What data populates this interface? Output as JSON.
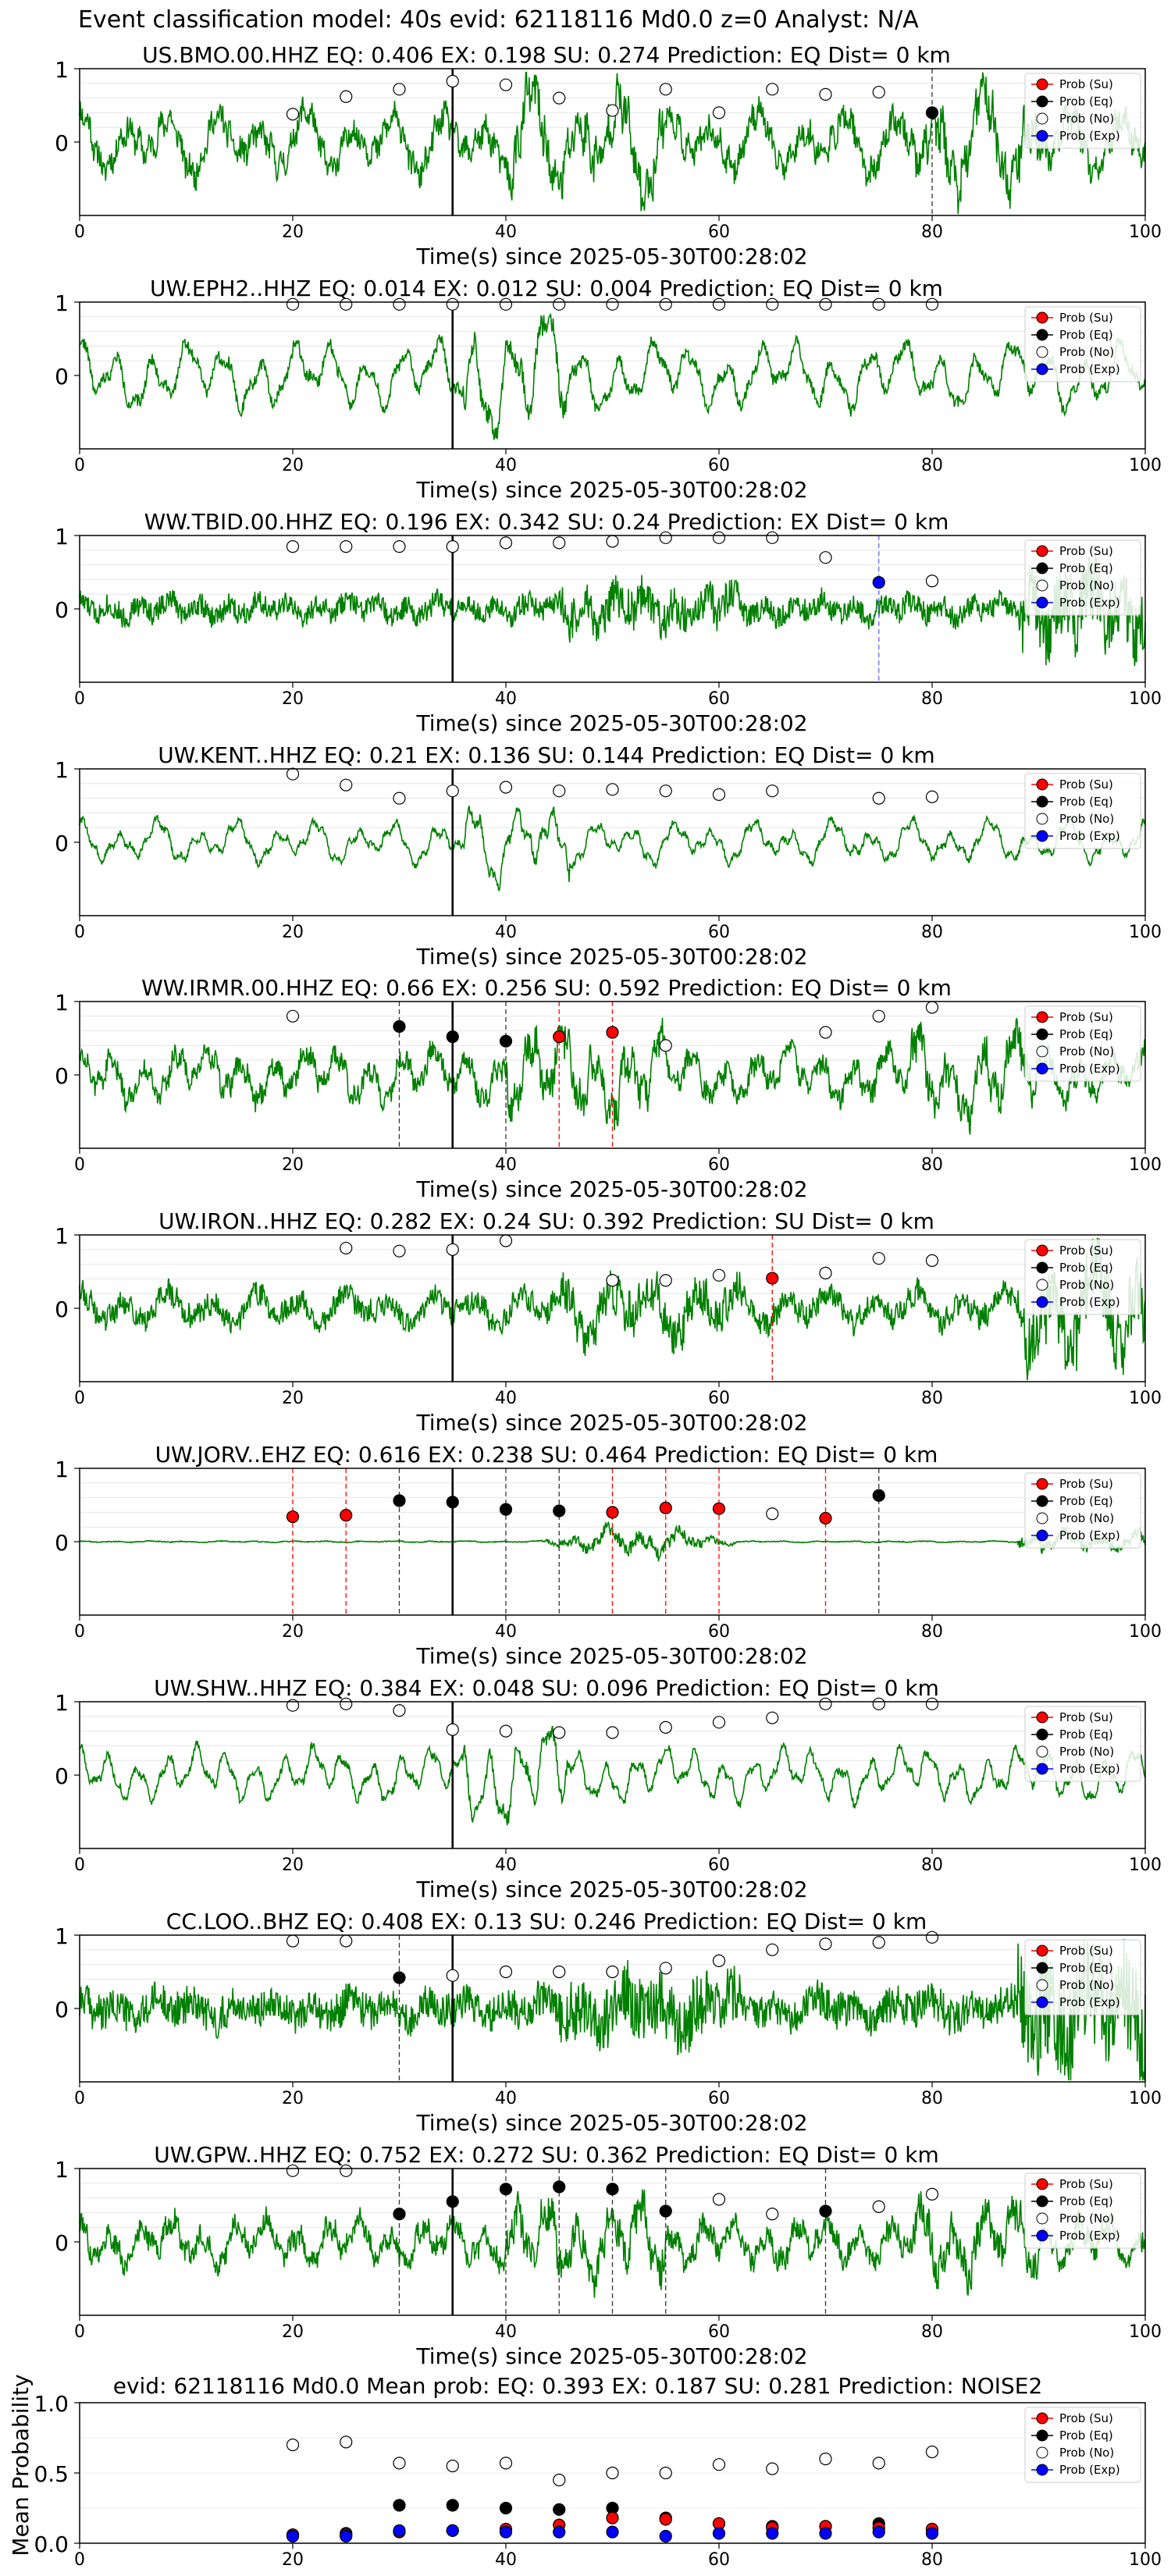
{
  "suptitle": "Event classification model: 40s evid: 62118116 Md0.0 z=0 Analyst: N/A",
  "legend_labels": [
    "Prob (Su)",
    "Prob (Eq)",
    "Prob (No)",
    "Prob (Exp)"
  ],
  "colors": {
    "waveform": "#008000",
    "su": "#ff0000",
    "eq": "#000000",
    "no": "#ffffff",
    "exp": "#0000ff",
    "exp_line": "#6666ff"
  },
  "chart_data": [
    {
      "type": "line",
      "title": "US.BMO.00.HHZ   EQ: 0.406  EX: 0.198  SU: 0.274   Prediction: EQ    Dist= 0 km",
      "xlabel": "Time(s) since 2025-05-30T00:28:02",
      "xlim": [
        0,
        100
      ],
      "ylim": [
        -1,
        1
      ],
      "xticks": [
        "0",
        "20",
        "40",
        "60",
        "80",
        "100"
      ],
      "yticks": [
        "0",
        "1"
      ],
      "arrival": 35,
      "amplitude": 0.75,
      "noise": 0.35,
      "style": "mixed",
      "seed": 11,
      "no": [
        [
          20,
          0.38
        ],
        [
          25,
          0.62
        ],
        [
          30,
          0.72
        ],
        [
          35,
          0.83
        ],
        [
          40,
          0.78
        ],
        [
          45,
          0.6
        ],
        [
          50,
          0.43
        ],
        [
          55,
          0.72
        ],
        [
          60,
          0.4
        ],
        [
          65,
          0.72
        ],
        [
          70,
          0.65
        ],
        [
          75,
          0.68
        ]
      ],
      "eq": [
        [
          80,
          0.4
        ]
      ],
      "su": [],
      "exp": [],
      "eq_lines": [
        80
      ],
      "su_lines": [],
      "exp_lines": []
    },
    {
      "type": "line",
      "title": "UW.EPH2..HHZ   EQ: 0.014  EX: 0.012  SU: 0.004   Prediction: EQ    Dist= 0 km",
      "xlabel": "Time(s) since 2025-05-30T00:28:02",
      "xlim": [
        0,
        100
      ],
      "ylim": [
        -1,
        1
      ],
      "xticks": [
        "0",
        "20",
        "40",
        "60",
        "80",
        "100"
      ],
      "yticks": [
        "0",
        "1"
      ],
      "arrival": 35,
      "amplitude": 0.7,
      "noise": 0.15,
      "style": "smooth",
      "seed": 22,
      "no": [
        [
          20,
          0.97
        ],
        [
          25,
          0.97
        ],
        [
          30,
          0.97
        ],
        [
          35,
          0.97
        ],
        [
          40,
          0.97
        ],
        [
          45,
          0.97
        ],
        [
          50,
          0.97
        ],
        [
          55,
          0.97
        ],
        [
          60,
          0.97
        ],
        [
          65,
          0.97
        ],
        [
          70,
          0.97
        ],
        [
          75,
          0.97
        ],
        [
          80,
          0.97
        ]
      ],
      "eq": [],
      "su": [],
      "exp": [],
      "eq_lines": [],
      "su_lines": [],
      "exp_lines": []
    },
    {
      "type": "line",
      "title": "WW.TBID.00.HHZ   EQ: 0.196  EX: 0.342  SU: 0.24   Prediction: EX    Dist= 0 km",
      "xlabel": "Time(s) since 2025-05-30T00:28:02",
      "xlim": [
        0,
        100
      ],
      "ylim": [
        -1,
        1
      ],
      "xticks": [
        "0",
        "20",
        "40",
        "60",
        "80",
        "100"
      ],
      "yticks": [
        "0",
        "1"
      ],
      "arrival": 35,
      "amplitude": 0.25,
      "noise": 0.35,
      "style": "noisy",
      "seed": 33,
      "no": [
        [
          20,
          0.85
        ],
        [
          25,
          0.85
        ],
        [
          30,
          0.85
        ],
        [
          35,
          0.85
        ],
        [
          40,
          0.9
        ],
        [
          45,
          0.9
        ],
        [
          50,
          0.92
        ],
        [
          55,
          0.97
        ],
        [
          60,
          0.97
        ],
        [
          65,
          0.97
        ],
        [
          70,
          0.7
        ],
        [
          80,
          0.38
        ]
      ],
      "eq": [],
      "su": [],
      "exp": [
        [
          75,
          0.36
        ]
      ],
      "eq_lines": [],
      "su_lines": [],
      "exp_lines": [
        75
      ]
    },
    {
      "type": "line",
      "title": "UW.KENT..HHZ   EQ: 0.21  EX: 0.136  SU: 0.144   Prediction: EQ    Dist= 0 km",
      "xlabel": "Time(s) since 2025-05-30T00:28:02",
      "xlim": [
        0,
        100
      ],
      "ylim": [
        -1,
        1
      ],
      "xticks": [
        "0",
        "20",
        "40",
        "60",
        "80",
        "100"
      ],
      "yticks": [
        "0",
        "1"
      ],
      "arrival": 35,
      "amplitude": 0.45,
      "noise": 0.08,
      "style": "smooth",
      "seed": 44,
      "no": [
        [
          20,
          0.93
        ],
        [
          25,
          0.78
        ],
        [
          30,
          0.6
        ],
        [
          35,
          0.7
        ],
        [
          40,
          0.75
        ],
        [
          45,
          0.7
        ],
        [
          50,
          0.72
        ],
        [
          55,
          0.7
        ],
        [
          60,
          0.65
        ],
        [
          65,
          0.7
        ],
        [
          75,
          0.6
        ],
        [
          80,
          0.62
        ]
      ],
      "eq": [],
      "su": [],
      "exp": [],
      "eq_lines": [],
      "su_lines": [],
      "exp_lines": []
    },
    {
      "type": "line",
      "title": "WW.IRMR.00.HHZ   EQ: 0.66  EX: 0.256  SU: 0.592   Prediction: EQ    Dist= 0 km",
      "xlabel": "Time(s) since 2025-05-30T00:28:02",
      "xlim": [
        0,
        100
      ],
      "ylim": [
        -1,
        1
      ],
      "xticks": [
        "0",
        "20",
        "40",
        "60",
        "80",
        "100"
      ],
      "yticks": [
        "0",
        "1"
      ],
      "arrival": 35,
      "amplitude": 0.6,
      "noise": 0.3,
      "style": "mixed",
      "seed": 55,
      "no": [
        [
          20,
          0.8
        ],
        [
          55,
          0.4
        ],
        [
          70,
          0.58
        ],
        [
          75,
          0.8
        ],
        [
          80,
          0.92
        ]
      ],
      "eq": [
        [
          30,
          0.66
        ],
        [
          35,
          0.52
        ],
        [
          40,
          0.46
        ]
      ],
      "su": [
        [
          45,
          0.52
        ],
        [
          50,
          0.58
        ]
      ],
      "exp": [],
      "eq_lines": [
        30,
        40
      ],
      "su_lines": [
        45,
        50
      ],
      "exp_lines": []
    },
    {
      "type": "line",
      "title": "UW.IRON..HHZ   EQ: 0.282  EX: 0.24  SU: 0.392   Prediction: SU    Dist= 0 km",
      "xlabel": "Time(s) since 2025-05-30T00:28:02",
      "xlim": [
        0,
        100
      ],
      "ylim": [
        -1,
        1
      ],
      "xticks": [
        "0",
        "20",
        "40",
        "60",
        "80",
        "100"
      ],
      "yticks": [
        "0",
        "1"
      ],
      "arrival": 35,
      "amplitude": 0.45,
      "noise": 0.35,
      "style": "noisy",
      "seed": 66,
      "no": [
        [
          25,
          0.82
        ],
        [
          30,
          0.78
        ],
        [
          35,
          0.8
        ],
        [
          40,
          0.92
        ],
        [
          50,
          0.38
        ],
        [
          55,
          0.38
        ],
        [
          60,
          0.45
        ],
        [
          70,
          0.48
        ],
        [
          75,
          0.68
        ],
        [
          80,
          0.65
        ]
      ],
      "eq": [],
      "su": [
        [
          65,
          0.41
        ]
      ],
      "exp": [],
      "eq_lines": [],
      "su_lines": [
        65
      ],
      "exp_lines": []
    },
    {
      "type": "line",
      "title": "UW.JORV..EHZ   EQ: 0.616  EX: 0.238  SU: 0.464   Prediction: EQ    Dist= 0 km",
      "xlabel": "Time(s) since 2025-05-30T00:28:02",
      "xlim": [
        0,
        100
      ],
      "ylim": [
        -1,
        1
      ],
      "xticks": [
        "0",
        "20",
        "40",
        "60",
        "80",
        "100"
      ],
      "yticks": [
        "0",
        "1"
      ],
      "arrival": 35,
      "amplitude": 0.06,
      "noise": 0.04,
      "style": "quiet",
      "seed": 77,
      "no": [
        [
          65,
          0.38
        ]
      ],
      "eq": [
        [
          30,
          0.56
        ],
        [
          35,
          0.54
        ],
        [
          40,
          0.44
        ],
        [
          45,
          0.42
        ],
        [
          75,
          0.63
        ]
      ],
      "su": [
        [
          20,
          0.34
        ],
        [
          25,
          0.36
        ],
        [
          50,
          0.4
        ],
        [
          55,
          0.46
        ],
        [
          60,
          0.45
        ],
        [
          70,
          0.32
        ]
      ],
      "exp": [],
      "eq_lines": [
        30,
        40,
        45,
        75
      ],
      "su_lines": [
        20,
        25,
        50,
        55,
        60,
        70
      ],
      "exp_lines": []
    },
    {
      "type": "line",
      "title": "UW.SHW..HHZ   EQ: 0.384  EX: 0.048  SU: 0.096   Prediction: EQ    Dist= 0 km",
      "xlabel": "Time(s) since 2025-05-30T00:28:02",
      "xlim": [
        0,
        100
      ],
      "ylim": [
        -1,
        1
      ],
      "xticks": [
        "0",
        "20",
        "40",
        "60",
        "80",
        "100"
      ],
      "yticks": [
        "0",
        "1"
      ],
      "arrival": 35,
      "amplitude": 0.55,
      "noise": 0.1,
      "style": "smooth",
      "seed": 88,
      "no": [
        [
          20,
          0.95
        ],
        [
          25,
          0.97
        ],
        [
          30,
          0.88
        ],
        [
          35,
          0.62
        ],
        [
          40,
          0.6
        ],
        [
          45,
          0.58
        ],
        [
          50,
          0.58
        ],
        [
          55,
          0.65
        ],
        [
          60,
          0.72
        ],
        [
          65,
          0.78
        ],
        [
          70,
          0.97
        ],
        [
          75,
          0.97
        ],
        [
          80,
          0.97
        ]
      ],
      "eq": [],
      "su": [],
      "exp": [],
      "eq_lines": [],
      "su_lines": [],
      "exp_lines": []
    },
    {
      "type": "line",
      "title": "CC.LOO..BHZ   EQ: 0.408  EX: 0.13  SU: 0.246   Prediction: EQ    Dist= 0 km",
      "xlabel": "Time(s) since 2025-05-30T00:28:02",
      "xlim": [
        0,
        100
      ],
      "ylim": [
        -1,
        1
      ],
      "xticks": [
        "0",
        "20",
        "40",
        "60",
        "80",
        "100"
      ],
      "yticks": [
        "0",
        "1"
      ],
      "arrival": 35,
      "amplitude": 0.3,
      "noise": 0.55,
      "style": "noisy",
      "seed": 99,
      "no": [
        [
          20,
          0.92
        ],
        [
          25,
          0.92
        ],
        [
          35,
          0.45
        ],
        [
          40,
          0.5
        ],
        [
          45,
          0.5
        ],
        [
          50,
          0.5
        ],
        [
          55,
          0.55
        ],
        [
          60,
          0.65
        ],
        [
          65,
          0.8
        ],
        [
          70,
          0.88
        ],
        [
          75,
          0.9
        ],
        [
          80,
          0.97
        ]
      ],
      "eq": [
        [
          30,
          0.42
        ]
      ],
      "su": [],
      "exp": [],
      "eq_lines": [
        30
      ],
      "su_lines": [],
      "exp_lines": []
    },
    {
      "type": "line",
      "title": "UW.GPW..HHZ   EQ: 0.752  EX: 0.272  SU: 0.362   Prediction: EQ    Dist= 0 km",
      "xlabel": "Time(s) since 2025-05-30T00:28:02",
      "xlim": [
        0,
        100
      ],
      "ylim": [
        -1,
        1
      ],
      "xticks": [
        "0",
        "20",
        "40",
        "60",
        "80",
        "100"
      ],
      "yticks": [
        "0",
        "1"
      ],
      "arrival": 35,
      "amplitude": 0.55,
      "noise": 0.3,
      "style": "mixed",
      "seed": 111,
      "no": [
        [
          20,
          0.97
        ],
        [
          25,
          0.97
        ],
        [
          60,
          0.58
        ],
        [
          65,
          0.38
        ],
        [
          75,
          0.48
        ],
        [
          80,
          0.65
        ]
      ],
      "eq": [
        [
          30,
          0.38
        ],
        [
          35,
          0.55
        ],
        [
          40,
          0.72
        ],
        [
          45,
          0.75
        ],
        [
          50,
          0.72
        ],
        [
          55,
          0.42
        ],
        [
          70,
          0.42
        ]
      ],
      "su": [],
      "exp": [],
      "eq_lines": [
        30,
        40,
        45,
        50,
        55,
        70
      ],
      "su_lines": [],
      "exp_lines": []
    },
    {
      "type": "scatter",
      "title": "evid: 62118116  Md0.0   Mean prob:   EQ: 0.393  EX: 0.187  SU: 0.281   Prediction: NOISE2",
      "xlabel": "",
      "ylabel": "Mean Probability",
      "xlim": [
        0,
        100
      ],
      "ylim": [
        0,
        1
      ],
      "xticks": [
        "0",
        "20",
        "40",
        "60",
        "80",
        "100"
      ],
      "yticks": [
        "0.0",
        "0.5",
        "1.0"
      ],
      "no": [
        [
          20,
          0.7
        ],
        [
          25,
          0.72
        ],
        [
          30,
          0.57
        ],
        [
          35,
          0.55
        ],
        [
          40,
          0.57
        ],
        [
          45,
          0.45
        ],
        [
          50,
          0.5
        ],
        [
          55,
          0.5
        ],
        [
          60,
          0.56
        ],
        [
          65,
          0.53
        ],
        [
          70,
          0.6
        ],
        [
          75,
          0.57
        ],
        [
          80,
          0.65
        ]
      ],
      "eq": [
        [
          20,
          0.06
        ],
        [
          25,
          0.07
        ],
        [
          30,
          0.27
        ],
        [
          35,
          0.27
        ],
        [
          40,
          0.25
        ],
        [
          45,
          0.24
        ],
        [
          50,
          0.25
        ],
        [
          55,
          0.18
        ],
        [
          60,
          0.14
        ],
        [
          65,
          0.12
        ],
        [
          70,
          0.12
        ],
        [
          75,
          0.14
        ],
        [
          80,
          0.1
        ]
      ],
      "su": [
        [
          20,
          0.06
        ],
        [
          25,
          0.06
        ],
        [
          30,
          0.08
        ],
        [
          35,
          0.09
        ],
        [
          40,
          0.1
        ],
        [
          45,
          0.13
        ],
        [
          50,
          0.18
        ],
        [
          55,
          0.17
        ],
        [
          60,
          0.14
        ],
        [
          65,
          0.11
        ],
        [
          70,
          0.12
        ],
        [
          75,
          0.11
        ],
        [
          80,
          0.1
        ]
      ],
      "exp": [
        [
          20,
          0.05
        ],
        [
          25,
          0.05
        ],
        [
          30,
          0.09
        ],
        [
          35,
          0.09
        ],
        [
          40,
          0.08
        ],
        [
          45,
          0.08
        ],
        [
          50,
          0.08
        ],
        [
          55,
          0.05
        ],
        [
          60,
          0.07
        ],
        [
          65,
          0.07
        ],
        [
          70,
          0.07
        ],
        [
          75,
          0.08
        ],
        [
          80,
          0.07
        ]
      ]
    }
  ]
}
